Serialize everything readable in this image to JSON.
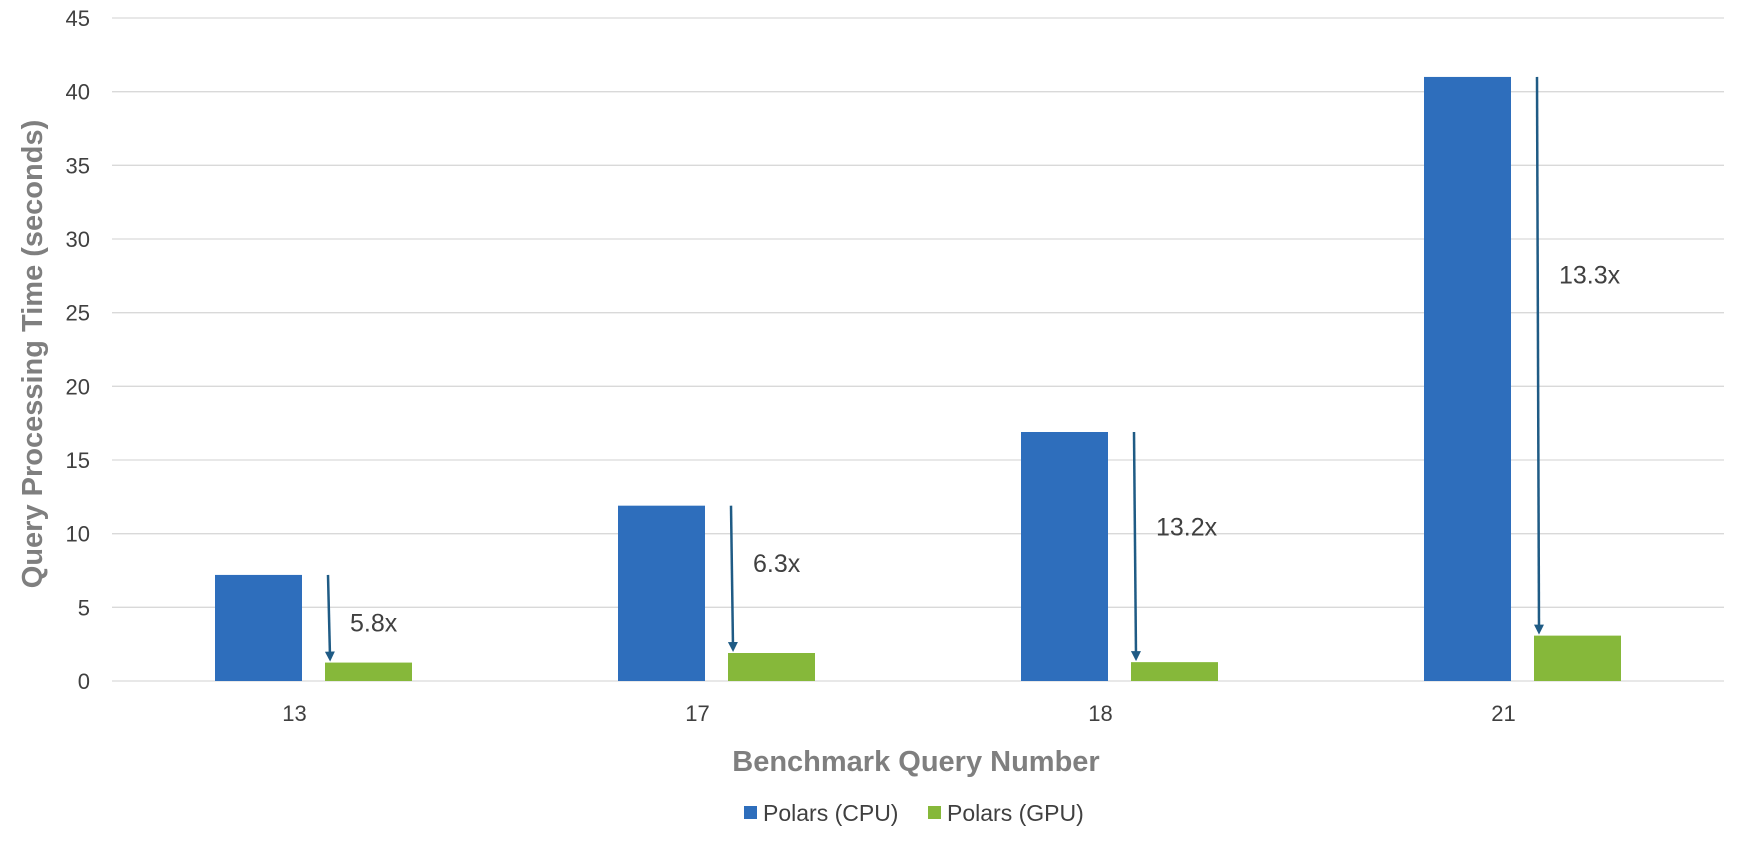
{
  "chart_data": {
    "type": "bar",
    "categories": [
      "13",
      "17",
      "18",
      "21"
    ],
    "series": [
      {
        "name": "Polars (CPU)",
        "values": [
          7.2,
          11.9,
          16.9,
          41.0
        ],
        "color": "#2e6ebc"
      },
      {
        "name": "Polars (GPU)",
        "values": [
          1.25,
          1.9,
          1.28,
          3.08
        ],
        "color": "#86b83a"
      }
    ],
    "annotations": [
      "5.8x",
      "6.3x",
      "13.2x",
      "13.3x"
    ],
    "xlabel": "Benchmark Query Number",
    "ylabel": "Query Processing Time (seconds)",
    "ylim": [
      0,
      45
    ],
    "yticks": [
      0,
      5,
      10,
      15,
      20,
      25,
      30,
      35,
      40,
      45
    ],
    "grid": true,
    "legend_position": "bottom-center",
    "arrow_color": "#1f5b85",
    "grid_color": "#d9d9d9"
  }
}
